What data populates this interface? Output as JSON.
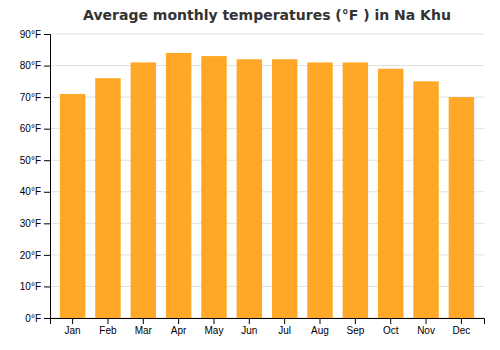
{
  "chart_data": {
    "type": "bar",
    "title": "Average monthly temperatures (°F ) in Na Khu",
    "categories": [
      "Jan",
      "Feb",
      "Mar",
      "Apr",
      "May",
      "Jun",
      "Jul",
      "Aug",
      "Sep",
      "Oct",
      "Nov",
      "Dec"
    ],
    "values": [
      71,
      76,
      81,
      84,
      83,
      82,
      82,
      81,
      81,
      79,
      75,
      70
    ],
    "color": "#FFA726",
    "ylim": [
      0,
      90
    ],
    "yticks": [
      {
        "value": 0,
        "label": "0°F"
      },
      {
        "value": 10,
        "label": "10°F"
      },
      {
        "value": 20,
        "label": "20°F"
      },
      {
        "value": 30,
        "label": "30°F"
      },
      {
        "value": 40,
        "label": "40°F"
      },
      {
        "value": 50,
        "label": "50°F"
      },
      {
        "value": 60,
        "label": "60°F"
      },
      {
        "value": 70,
        "label": "70°F"
      },
      {
        "value": 80,
        "label": "80°F"
      },
      {
        "value": 90,
        "label": "90°F"
      }
    ],
    "grid": true
  }
}
